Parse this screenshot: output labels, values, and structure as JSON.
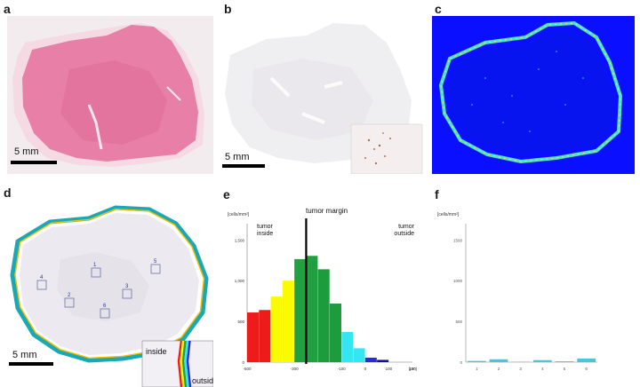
{
  "panels": {
    "a": {
      "letter": "a",
      "scale": "5 mm"
    },
    "b": {
      "letter": "b",
      "scale": "5 mm"
    },
    "c": {
      "letter": "c"
    },
    "d": {
      "letter": "d",
      "scale": "5 mm",
      "regions": [
        "1",
        "2",
        "3",
        "4",
        "5",
        "6"
      ],
      "inset_inside": "inside",
      "inset_outside": "outside"
    },
    "e": {
      "letter": "e"
    },
    "f": {
      "letter": "f"
    }
  },
  "colors": {
    "he_pink": "#e87fa6",
    "ihc_bg": "#efeef0",
    "heat_bg": "#0a10ff",
    "red": "#ee1b1b",
    "yellow": "#fafa00",
    "green": "#20a040",
    "dark_green": "#1c9c3c",
    "cyan": "#33e6f0",
    "blue": "#2a2ad8",
    "navy": "#101098",
    "f_bar": "#4cc4dc"
  },
  "chart_data": [
    {
      "type": "bar",
      "title": "tumor margin",
      "ylabel": "[cells/mm²]",
      "xlabel": "[μm]",
      "annotations": [
        "tumor inside",
        "tumor outside"
      ],
      "xlim": [
        -500,
        200
      ],
      "ylim": [
        0,
        1700
      ],
      "yticks": [
        0,
        500,
        1000,
        1500
      ],
      "ytick_labels": [
        "0",
        "500",
        "1,000",
        "1,500"
      ],
      "xticks": [
        -500,
        -300,
        -100,
        0,
        100,
        200
      ],
      "xtick_labels": [
        "-500",
        "-300",
        "-100",
        "0",
        "100",
        "200"
      ],
      "bins": [
        {
          "x0": -500,
          "x1": -450,
          "value": 610,
          "color": "red"
        },
        {
          "x0": -450,
          "x1": -400,
          "value": 640,
          "color": "red"
        },
        {
          "x0": -400,
          "x1": -350,
          "value": 805,
          "color": "yellow"
        },
        {
          "x0": -350,
          "x1": -300,
          "value": 1000,
          "color": "yellow"
        },
        {
          "x0": -300,
          "x1": -250,
          "value": 1265,
          "color": "green"
        },
        {
          "x0": -250,
          "x1": -200,
          "value": 1305,
          "color": "green"
        },
        {
          "x0": -200,
          "x1": -150,
          "value": 1140,
          "color": "dark_green"
        },
        {
          "x0": -150,
          "x1": -100,
          "value": 720,
          "color": "dark_green"
        },
        {
          "x0": -100,
          "x1": -50,
          "value": 370,
          "color": "cyan"
        },
        {
          "x0": -50,
          "x1": 0,
          "value": 170,
          "color": "cyan"
        },
        {
          "x0": 0,
          "x1": 50,
          "value": 55,
          "color": "blue"
        },
        {
          "x0": 50,
          "x1": 100,
          "value": 28,
          "color": "navy"
        }
      ],
      "margin_x": -250,
      "grid": false,
      "legend": "none"
    },
    {
      "type": "bar",
      "ylabel": "[cells/mm²]",
      "ylim": [
        0,
        1700
      ],
      "yticks": [
        0,
        500,
        1000,
        1500
      ],
      "ytick_labels": [
        "0",
        "500",
        "1000",
        "1500"
      ],
      "categories": [
        "1",
        "2",
        "3",
        "4",
        "5",
        "6"
      ],
      "values": [
        15,
        35,
        5,
        25,
        10,
        45
      ],
      "grid": false,
      "legend": "none"
    }
  ]
}
